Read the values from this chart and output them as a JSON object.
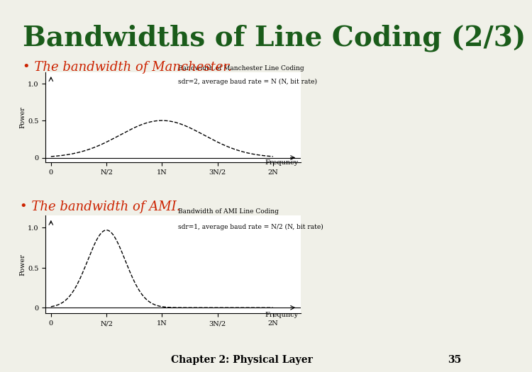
{
  "title": "Bandwidths of Line Coding (2/3)",
  "title_color": "#1a5c1a",
  "title_fontsize": 28,
  "background_color": "#f0f0e8",
  "bullet1_text": "• The bandwidth of Manchester.",
  "bullet2_text": "• The bandwidth of AMI.",
  "bullet1_color": "#cc2200",
  "bullet2_color": "#cc2200",
  "bullet_fontsize": 13,
  "top_line_color": "#c8a820",
  "bottom_line_color": "#c8a820",
  "left_line_color": "#c8a820",
  "chart1_title1": "Bandwidth of Manchester Line Coding",
  "chart1_title2": "sdr=2, average baud rate = N (N, bit rate)",
  "chart2_title1": "Bandwidth of AMI Line Coding",
  "chart2_title2": "sdr=1, average baud rate = N/2 (N, bit rate)",
  "axis_label_power": "Power",
  "axis_label_freq": "Frequncy",
  "x_tick_labels": [
    "0",
    "N/2",
    "1N",
    "3N/2",
    "2N"
  ],
  "y_tick_labels": [
    "0",
    "0.5",
    "1.0"
  ],
  "footer_text": "Chapter 2: Physical Layer",
  "footer_page": "35",
  "footer_fontsize": 10,
  "chart_bg": "#ffffff"
}
